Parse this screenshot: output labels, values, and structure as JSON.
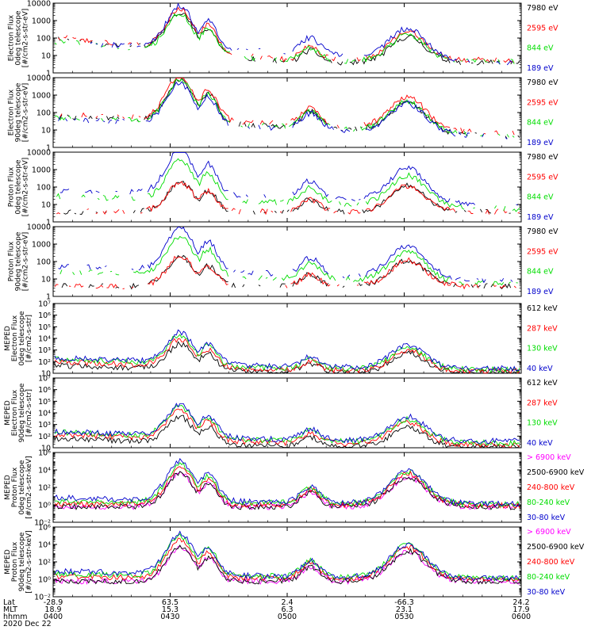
{
  "chart_data": [
    {
      "type": "line",
      "ylabel": [
        "Electron Flux",
        "0deg telescope",
        "[#/cm2-s-str-eV]"
      ],
      "yscale": "log",
      "ylim": [
        1,
        10000
      ],
      "y_ticks": [
        1,
        10,
        100,
        1000,
        10000
      ],
      "y_tick_labels": [
        "1",
        "10",
        "100",
        "1000",
        "10000"
      ],
      "series": [
        {
          "name": "7980 eV",
          "color": "#000000",
          "style": "line",
          "segments": [
            [
              4.0,
              3.5
            ],
            [
              9.0,
              0.9
            ],
            [
              14.0,
              0.9
            ]
          ]
        },
        {
          "name": "2595 eV",
          "color": "#ff0000",
          "style": "line",
          "segments": [
            [
              4.0,
              3.6
            ],
            [
              9.0,
              1.2
            ],
            [
              14.0,
              1.2
            ]
          ]
        },
        {
          "name": "844 eV",
          "color": "#00dd00",
          "style": "line",
          "segments": [
            [
              4.0,
              3.1
            ],
            [
              9.0,
              1.1
            ],
            [
              14.0,
              1.0
            ]
          ]
        },
        {
          "name": "189 eV",
          "color": "#0000cc",
          "style": "line",
          "segments": [
            [
              4.0,
              3.0
            ],
            [
              14.0,
              0.9
            ]
          ]
        }
      ]
    },
    {
      "type": "line",
      "ylabel": [
        "Electron Flux",
        "90deg telescope",
        "[#/cm2-s-str-eV]"
      ],
      "yscale": "log",
      "ylim": [
        1,
        10000
      ],
      "y_ticks": [
        1,
        10,
        100,
        1000,
        10000
      ],
      "y_tick_labels": [
        "1",
        "10",
        "100",
        "1000",
        "10000"
      ],
      "series": [
        {
          "name": "7980 eV",
          "color": "#000000",
          "style": "line",
          "segments": [
            [
              4.5,
              3.1
            ],
            [
              14.0,
              0.9
            ]
          ]
        },
        {
          "name": "2595 eV",
          "color": "#ff0000",
          "style": "line",
          "segments": [
            [
              4.5,
              3.3
            ],
            [
              14.0,
              1.3
            ]
          ]
        },
        {
          "name": "844 eV",
          "color": "#00dd00",
          "style": "line",
          "segments": [
            [
              4.5,
              3.0
            ],
            [
              14.0,
              1.0
            ]
          ]
        },
        {
          "name": "189 eV",
          "color": "#0000cc",
          "style": "line",
          "segments": [
            [
              4.0,
              2.8
            ],
            [
              14.0,
              0.9
            ]
          ]
        }
      ]
    },
    {
      "type": "line",
      "ylabel": [
        "Proton Flux",
        "0deg telescope",
        "[#/cm2-s-str-eV]"
      ],
      "yscale": "log",
      "ylim": [
        1,
        10000
      ],
      "y_ticks": [
        1,
        10,
        100,
        1000,
        10000
      ],
      "y_tick_labels": [
        "1",
        "10",
        "100",
        "1000",
        "10000"
      ],
      "series": [
        {
          "name": "7980 eV",
          "color": "#000000",
          "style": "line",
          "segments": [
            [
              4.0,
              0.9
            ],
            [
              9.0,
              0.9
            ]
          ]
        },
        {
          "name": "2595 eV",
          "color": "#ff0000",
          "style": "line",
          "segments": [
            [
              4.0,
              0.9
            ],
            [
              9.0,
              0.9
            ]
          ]
        },
        {
          "name": "844 eV",
          "color": "#00dd00",
          "style": "line",
          "segments": [
            [
              4.0,
              2.5
            ],
            [
              14.0,
              1.2
            ]
          ]
        },
        {
          "name": "189 eV",
          "color": "#0000cc",
          "style": "line",
          "segments": [
            [
              4.0,
              3.2
            ],
            [
              14.0,
              1.6
            ]
          ]
        }
      ]
    },
    {
      "type": "line",
      "ylabel": [
        "Proton Flux",
        "90deg telescope",
        "[#/cm2-s-str-eV]"
      ],
      "yscale": "log",
      "ylim": [
        1,
        10000
      ],
      "y_ticks": [
        1,
        10,
        100,
        1000,
        10000
      ],
      "y_tick_labels": [
        "1",
        "10",
        "100",
        "1000",
        "10000"
      ],
      "series": [
        {
          "name": "7980 eV",
          "color": "#000000",
          "style": "line",
          "segments": [
            [
              4.0,
              0.9
            ],
            [
              9.0,
              0.9
            ]
          ]
        },
        {
          "name": "2595 eV",
          "color": "#ff0000",
          "style": "line",
          "segments": [
            [
              4.0,
              0.9
            ],
            [
              9.0,
              0.9
            ]
          ]
        },
        {
          "name": "844 eV",
          "color": "#00dd00",
          "style": "line",
          "segments": [
            [
              4.0,
              2.4
            ],
            [
              14.0,
              1.1
            ]
          ]
        },
        {
          "name": "189 eV",
          "color": "#0000cc",
          "style": "line",
          "segments": [
            [
              4.0,
              3.0
            ],
            [
              14.0,
              1.4
            ]
          ]
        }
      ]
    },
    {
      "type": "line",
      "ylabel": [
        "MEPED",
        "Electron Flux",
        "0deg telescope",
        "[#/cm2-s-str]"
      ],
      "yscale": "log",
      "ylim": [
        10,
        10000000
      ],
      "y_ticks": [
        10,
        100,
        1000,
        10000,
        100000,
        1000000,
        10000000
      ],
      "y_tick_labels": [
        "10",
        "10²",
        "10³",
        "10⁴",
        "10⁵",
        "10⁶",
        "10⁷"
      ],
      "series": [
        {
          "name": "612 keV",
          "color": "#000000",
          "style": "line",
          "segments": [
            [
              4.2,
              2.0
            ],
            [
              9.0,
              0.9
            ],
            [
              14.0,
              0.9
            ]
          ]
        },
        {
          "name": "287 keV",
          "color": "#ff0000",
          "style": "line",
          "segments": [
            [
              4.2,
              2.6
            ],
            [
              9.0,
              1.2
            ],
            [
              14.0,
              1.1
            ]
          ]
        },
        {
          "name": "130 keV",
          "color": "#00dd00",
          "style": "line",
          "segments": [
            [
              4.0,
              3.0
            ],
            [
              9.0,
              1.5
            ],
            [
              14.0,
              1.3
            ]
          ]
        },
        {
          "name": "40 keV",
          "color": "#0000cc",
          "style": "line",
          "segments": [
            [
              4.0,
              3.2
            ],
            [
              9.0,
              1.8
            ],
            [
              14.0,
              1.5
            ]
          ]
        }
      ]
    },
    {
      "type": "line",
      "ylabel": [
        "MEPED",
        "Electron Flux",
        "90deg telescope",
        "[#/cm2-s-str]"
      ],
      "yscale": "log",
      "ylim": [
        10,
        10000000
      ],
      "y_ticks": [
        10,
        100,
        1000,
        10000,
        100000,
        1000000,
        10000000
      ],
      "y_tick_labels": [
        "10",
        "10²",
        "10³",
        "10⁴",
        "10⁵",
        "10⁶",
        "10⁷"
      ],
      "series": [
        {
          "name": "612 keV",
          "color": "#000000",
          "style": "line",
          "segments": [
            [
              4.2,
              2.2
            ],
            [
              9.0,
              1.0
            ],
            [
              14.0,
              0.9
            ]
          ]
        },
        {
          "name": "287 keV",
          "color": "#ff0000",
          "style": "line",
          "segments": [
            [
              4.2,
              2.8
            ],
            [
              9.0,
              1.5
            ],
            [
              14.0,
              1.2
            ]
          ]
        },
        {
          "name": "130 keV",
          "color": "#00dd00",
          "style": "line",
          "segments": [
            [
              4.0,
              3.2
            ],
            [
              9.0,
              1.8
            ],
            [
              14.0,
              1.5
            ]
          ]
        },
        {
          "name": "40 keV",
          "color": "#0000cc",
          "style": "line",
          "segments": [
            [
              4.0,
              3.3
            ],
            [
              9.0,
              2.0
            ],
            [
              14.0,
              1.8
            ]
          ]
        }
      ]
    },
    {
      "type": "line",
      "ylabel": [
        "MEPED",
        "Proton Flux",
        "0deg telescope",
        "[#/cm2-s-str-keV]"
      ],
      "yscale": "log",
      "ylim": [
        0.01,
        1000000
      ],
      "y_ticks": [
        0.01,
        1,
        100,
        10000,
        1000000
      ],
      "y_tick_labels": [
        "10⁻²",
        "10⁰",
        "10²",
        "10⁴",
        "10⁶"
      ],
      "series": [
        {
          "name": "> 6900 keV",
          "color": "#ff00ff",
          "style": "line",
          "segments": [
            [
              4.0,
              0.9
            ],
            [
              9.0,
              0.9
            ]
          ]
        },
        {
          "name": "2500-6900 keV",
          "color": "#000000",
          "style": "line",
          "segments": [
            [
              4.0,
              0.9
            ],
            [
              9.0,
              0.9
            ]
          ]
        },
        {
          "name": "240-800 keV",
          "color": "#ff0000",
          "style": "line",
          "segments": [
            [
              4.0,
              1.5
            ],
            [
              9.0,
              1.2
            ]
          ]
        },
        {
          "name": "80-240 keV",
          "color": "#00dd00",
          "style": "line",
          "segments": [
            [
              4.0,
              2.0
            ],
            [
              9.0,
              1.4
            ]
          ]
        },
        {
          "name": "30-80 keV",
          "color": "#0000cc",
          "style": "line",
          "segments": [
            [
              4.0,
              2.8
            ],
            [
              9.0,
              1.8
            ],
            [
              14.0,
              1.5
            ]
          ]
        }
      ]
    },
    {
      "type": "line",
      "ylabel": [
        "MEPED",
        "Proton Flux",
        "90deg telescope",
        "[#/cm2-s-str-keV]"
      ],
      "yscale": "log",
      "ylim": [
        0.01,
        1000000
      ],
      "y_ticks": [
        0.01,
        1,
        100,
        10000,
        1000000
      ],
      "y_tick_labels": [
        "10⁻²",
        "10⁰",
        "10²",
        "10⁴",
        "10⁶"
      ],
      "series": [
        {
          "name": "> 6900 keV",
          "color": "#ff00ff",
          "style": "line",
          "segments": [
            [
              4.0,
              0.9
            ],
            [
              9.0,
              0.9
            ]
          ]
        },
        {
          "name": "2500-6900 keV",
          "color": "#000000",
          "style": "line",
          "segments": [
            [
              4.0,
              0.9
            ],
            [
              9.0,
              0.9
            ]
          ]
        },
        {
          "name": "240-800 keV",
          "color": "#ff0000",
          "style": "line",
          "segments": [
            [
              4.0,
              1.8
            ],
            [
              9.0,
              1.3
            ]
          ]
        },
        {
          "name": "80-240 keV",
          "color": "#00dd00",
          "style": "line",
          "segments": [
            [
              4.0,
              2.4
            ],
            [
              9.0,
              1.5
            ]
          ]
        },
        {
          "name": "30-80 keV",
          "color": "#0000cc",
          "style": "line",
          "segments": [
            [
              4.0,
              3.0
            ],
            [
              9.0,
              1.9
            ],
            [
              14.0,
              1.6
            ]
          ]
        }
      ]
    }
  ],
  "x_axis": {
    "row_labels": [
      "Lat",
      "MLT",
      "hhmm"
    ],
    "ticks": [
      {
        "lat": "-28.9",
        "mlt": "18.9",
        "hhmm": "0400"
      },
      {
        "lat": "63.5",
        "mlt": "15.3",
        "hhmm": "0430"
      },
      {
        "lat": "2.4",
        "mlt": "6.3",
        "hhmm": "0500"
      },
      {
        "lat": "-66.3",
        "mlt": "23.1",
        "hhmm": "0530"
      },
      {
        "lat": "24.2",
        "mlt": "17.9",
        "hhmm": "0600"
      }
    ],
    "date": "2020 Dec 22"
  }
}
